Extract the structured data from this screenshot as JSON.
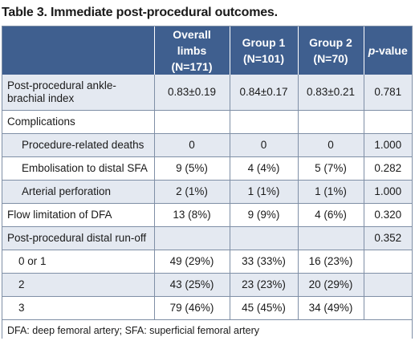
{
  "caption": "Table 3. Immediate post-procedural outcomes.",
  "colors": {
    "header_bg": "#3f5f8f",
    "shaded_row": "#e4e9f1",
    "border": "#7f8fa6"
  },
  "header": {
    "col0": "",
    "col1": [
      "Overall limbs",
      "(N=171)"
    ],
    "col2": [
      "Group 1",
      "(N=101)"
    ],
    "col3": [
      "Group 2",
      "(N=70)"
    ],
    "col4_italic": "p",
    "col4_rest": "-value"
  },
  "rows": [
    {
      "label": "Post-procedural ankle-brachial index",
      "overall": "0.83±0.19",
      "g1": "0.84±0.17",
      "g2": "0.83±0.21",
      "p": "0.781"
    },
    {
      "label": "Complications",
      "overall": "",
      "g1": "",
      "g2": "",
      "p": ""
    },
    {
      "label": "Procedure-related deaths",
      "overall": "0",
      "g1": "0",
      "g2": "0",
      "p": "1.000"
    },
    {
      "label": "Embolisation to distal SFA",
      "overall": "9 (5%)",
      "g1": "4 (4%)",
      "g2": "5 (7%)",
      "p": "0.282"
    },
    {
      "label": "Arterial perforation",
      "overall": "2 (1%)",
      "g1": "1 (1%)",
      "g2": "1 (1%)",
      "p": "1.000"
    },
    {
      "label": "Flow limitation of DFA",
      "overall": "13 (8%)",
      "g1": "9 (9%)",
      "g2": "4 (6%)",
      "p": "0.320"
    },
    {
      "label": "Post-procedural distal run-off",
      "overall": "",
      "g1": "",
      "g2": "",
      "p": "0.352"
    },
    {
      "label": "0 or 1",
      "overall": "49 (29%)",
      "g1": "33 (33%)",
      "g2": "16 (23%)",
      "p": ""
    },
    {
      "label": "2",
      "overall": "43 (25%)",
      "g1": "23 (23%)",
      "g2": "20 (29%)",
      "p": ""
    },
    {
      "label": "3",
      "overall": "79 (46%)",
      "g1": "45 (45%)",
      "g2": "34 (49%)",
      "p": ""
    }
  ],
  "footnote": "DFA: deep femoral artery; SFA: superficial femoral artery"
}
